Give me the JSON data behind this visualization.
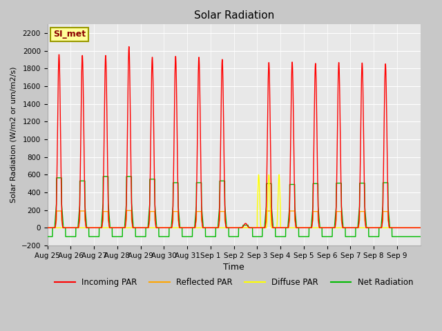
{
  "title": "Solar Radiation",
  "ylabel": "Solar Radiation (W/m2 or um/m2/s)",
  "xlabel": "Time",
  "ylim": [
    -200,
    2300
  ],
  "yticks": [
    -200,
    0,
    200,
    400,
    600,
    800,
    1000,
    1200,
    1400,
    1600,
    1800,
    2000,
    2200
  ],
  "x_labels": [
    "Aug 25",
    "Aug 26",
    "Aug 27",
    "Aug 28",
    "Aug 29",
    "Aug 30",
    "Aug 31",
    "Sep 1",
    "Sep 2",
    "Sep 3",
    "Sep 4",
    "Sep 5",
    "Sep 6",
    "Sep 7",
    "Sep 8",
    "Sep 9"
  ],
  "colors": {
    "incoming": "#ff0000",
    "reflected": "#ffa500",
    "diffuse": "#ffff00",
    "net": "#00bb00"
  },
  "fig_facecolor": "#c8c8c8",
  "plot_facecolor": "#e8e8e8",
  "annotation_label": "SI_met",
  "legend_entries": [
    "Incoming PAR",
    "Reflected PAR",
    "Diffuse PAR",
    "Net Radiation"
  ],
  "n_days": 16,
  "peak_incoming": [
    1960,
    1950,
    1950,
    2050,
    1930,
    1940,
    1930,
    1905,
    0,
    1870,
    1875,
    1860,
    1870,
    1865,
    1855,
    0
  ],
  "peak_net": [
    565,
    530,
    580,
    580,
    550,
    510,
    510,
    530,
    0,
    500,
    490,
    500,
    505,
    505,
    510,
    0
  ],
  "peak_reflected": [
    190,
    190,
    185,
    195,
    185,
    185,
    185,
    185,
    0,
    190,
    190,
    185,
    185,
    185,
    185,
    0
  ],
  "night_net": -100,
  "linewidth": 1.0,
  "sharpness": 4.0
}
